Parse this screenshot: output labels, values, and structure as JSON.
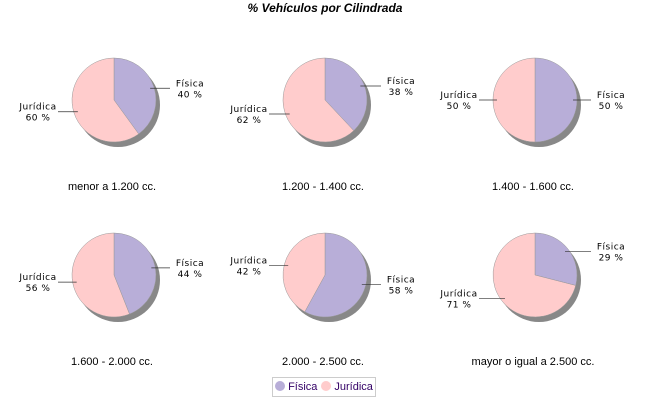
{
  "chart_data": {
    "type": "pie",
    "title": "% Vehículos por Cilindrada",
    "series_names": [
      "Física",
      "Jurídica"
    ],
    "colors": {
      "Física": "#b8aed8",
      "Jurídica": "#ffcccc",
      "shadow": "#888888",
      "legend_text": "#330066"
    },
    "legend": "bottom",
    "charts": [
      {
        "category": "menor a 1.200 cc.",
        "values": [
          40,
          60
        ]
      },
      {
        "category": "1.200 - 1.400 cc.",
        "values": [
          38,
          62
        ]
      },
      {
        "category": "1.400 - 1.600 cc.",
        "values": [
          50,
          50
        ]
      },
      {
        "category": "1.600 - 2.000 cc.",
        "values": [
          44,
          56
        ]
      },
      {
        "category": "2.000 - 2.500 cc.",
        "values": [
          58,
          42
        ]
      },
      {
        "category": "mayor o igual a 2.500 cc.",
        "values": [
          29,
          71
        ]
      }
    ]
  }
}
